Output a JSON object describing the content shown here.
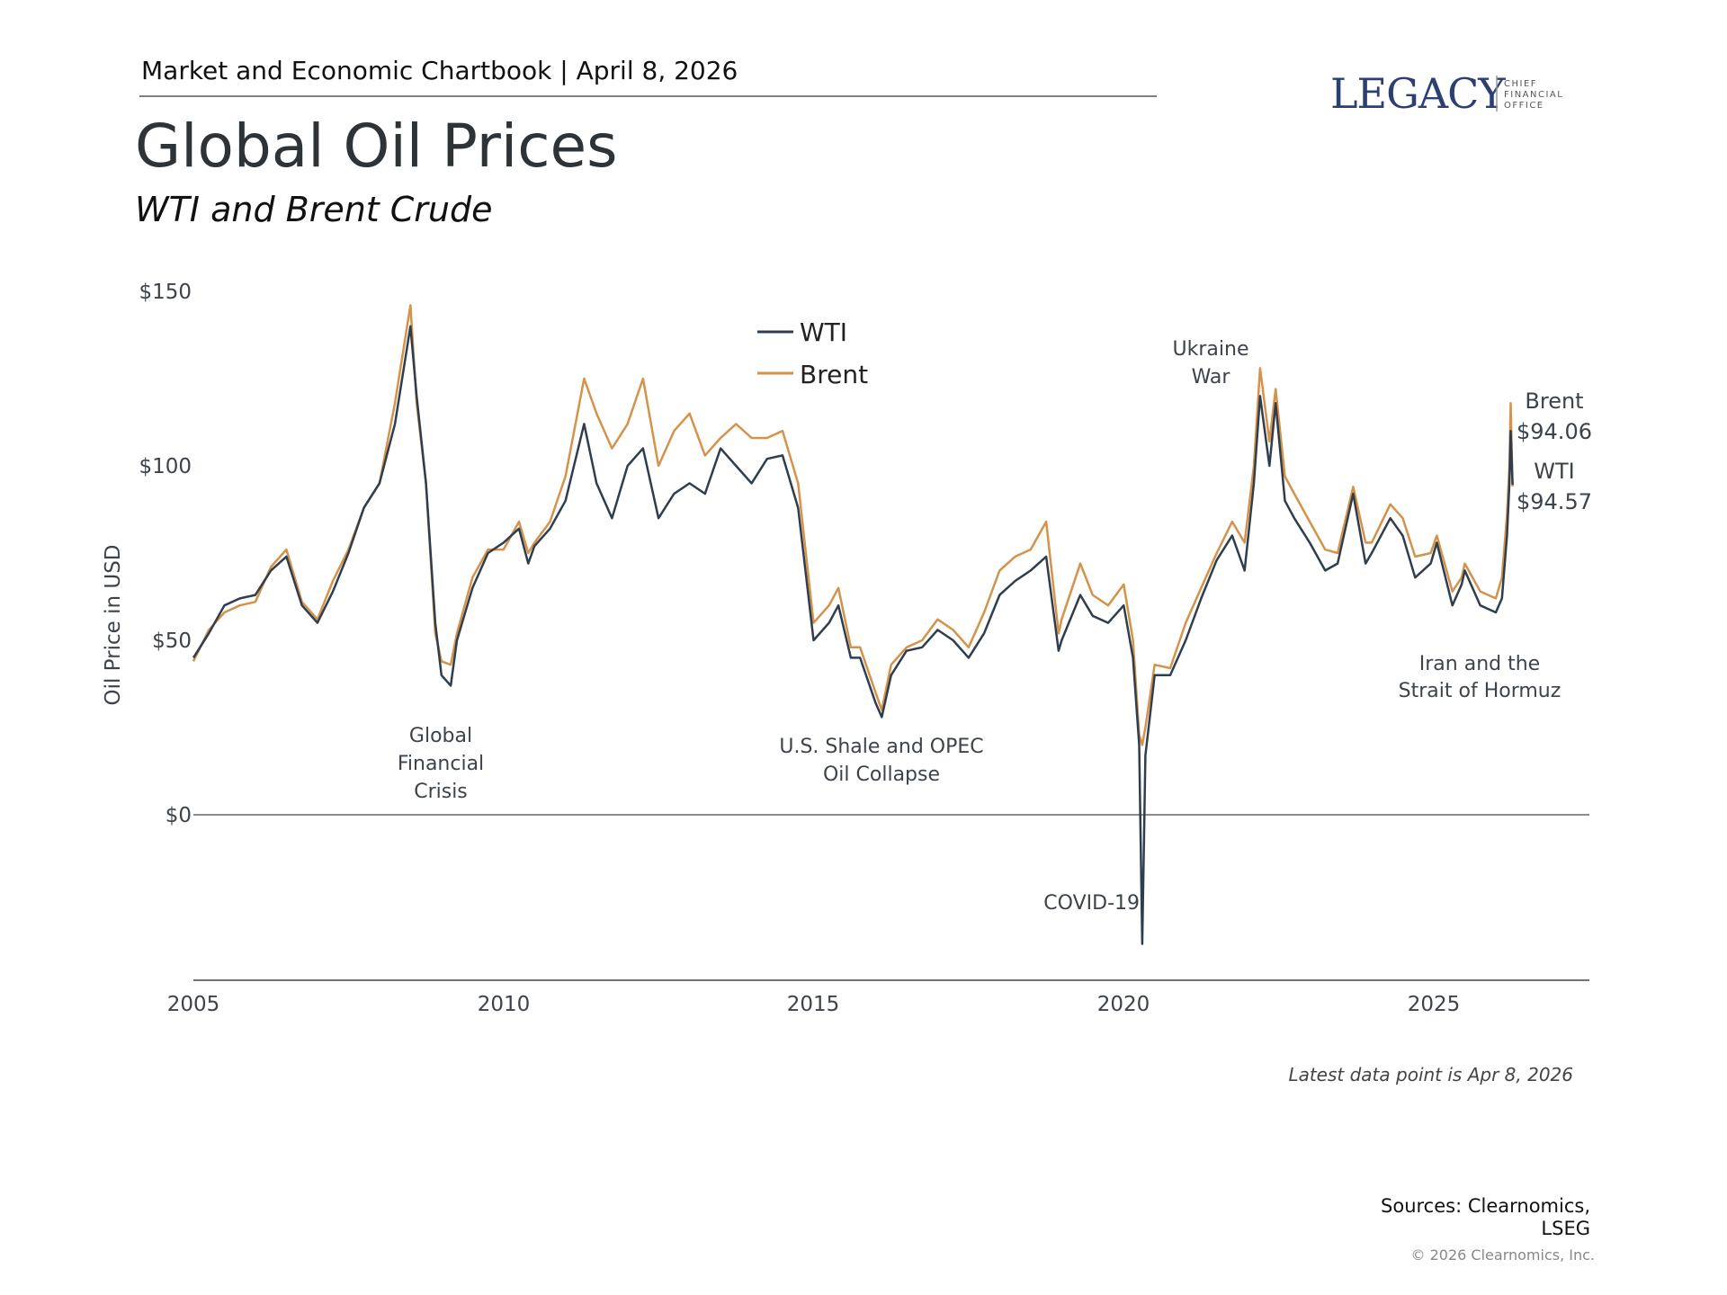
{
  "header": {
    "chartbook": "Market and Economic Chartbook | April 8, 2026"
  },
  "logo": {
    "name": "LEGACY",
    "tagline": [
      "CHIEF",
      "FINANCIAL",
      "OFFICE"
    ],
    "color": "#2b3f72"
  },
  "title": "Global Oil Prices",
  "subtitle": "WTI and Brent Crude",
  "chart_data": {
    "type": "line",
    "ylabel": "Oil Price in USD",
    "xlabel": "",
    "ylim": [
      -37,
      150
    ],
    "xlim": [
      2005,
      2027.5
    ],
    "y_ticks": [
      {
        "v": 150,
        "label": "$150"
      },
      {
        "v": 100,
        "label": "$100"
      },
      {
        "v": 50,
        "label": "$50"
      },
      {
        "v": 0,
        "label": "$0"
      }
    ],
    "x_ticks": [
      {
        "v": 2005,
        "label": "2005"
      },
      {
        "v": 2010,
        "label": "2010"
      },
      {
        "v": 2015,
        "label": "2015"
      },
      {
        "v": 2020,
        "label": "2020"
      },
      {
        "v": 2025,
        "label": "2025"
      }
    ],
    "legend": {
      "placement": "top-center"
    },
    "x": [
      2005.0,
      2005.25,
      2005.5,
      2005.75,
      2006.0,
      2006.25,
      2006.5,
      2006.75,
      2007.0,
      2007.25,
      2007.5,
      2007.75,
      2008.0,
      2008.25,
      2008.5,
      2008.6,
      2008.75,
      2008.9,
      2009.0,
      2009.15,
      2009.25,
      2009.5,
      2009.75,
      2010.0,
      2010.25,
      2010.4,
      2010.5,
      2010.75,
      2011.0,
      2011.3,
      2011.5,
      2011.75,
      2012.0,
      2012.25,
      2012.5,
      2012.75,
      2013.0,
      2013.25,
      2013.5,
      2013.75,
      2014.0,
      2014.25,
      2014.5,
      2014.75,
      2015.0,
      2015.25,
      2015.4,
      2015.6,
      2015.75,
      2016.0,
      2016.1,
      2016.25,
      2016.5,
      2016.75,
      2017.0,
      2017.25,
      2017.5,
      2017.75,
      2018.0,
      2018.25,
      2018.5,
      2018.75,
      2018.95,
      2019.0,
      2019.3,
      2019.5,
      2019.75,
      2020.0,
      2020.15,
      2020.25,
      2020.3,
      2020.35,
      2020.5,
      2020.75,
      2021.0,
      2021.25,
      2021.5,
      2021.75,
      2021.95,
      2022.1,
      2022.2,
      2022.35,
      2022.45,
      2022.6,
      2022.75,
      2023.0,
      2023.25,
      2023.45,
      2023.7,
      2023.9,
      2024.0,
      2024.3,
      2024.5,
      2024.7,
      2024.95,
      2025.05,
      2025.3,
      2025.45,
      2025.5,
      2025.75,
      2026.0,
      2026.1,
      2026.18,
      2026.22,
      2026.24,
      2026.27
    ],
    "series": [
      {
        "name": "WTI",
        "color": "#2f3e4e",
        "values": [
          45,
          52,
          60,
          62,
          63,
          70,
          74,
          60,
          55,
          64,
          75,
          88,
          95,
          112,
          140,
          120,
          95,
          55,
          40,
          37,
          50,
          65,
          75,
          78,
          82,
          72,
          77,
          82,
          90,
          112,
          95,
          85,
          100,
          105,
          85,
          92,
          95,
          92,
          105,
          100,
          95,
          102,
          103,
          88,
          50,
          55,
          60,
          45,
          45,
          32,
          28,
          40,
          47,
          48,
          53,
          50,
          45,
          52,
          63,
          67,
          70,
          74,
          47,
          50,
          63,
          57,
          55,
          60,
          45,
          20,
          -37,
          17,
          40,
          40,
          50,
          62,
          73,
          80,
          70,
          95,
          120,
          100,
          118,
          90,
          85,
          78,
          70,
          72,
          92,
          72,
          75,
          85,
          80,
          68,
          72,
          78,
          60,
          66,
          70,
          60,
          58,
          62,
          80,
          95,
          110,
          94.57
        ]
      },
      {
        "name": "Brent",
        "color": "#d4924a",
        "values": [
          44,
          53,
          58,
          60,
          61,
          71,
          76,
          61,
          56,
          67,
          76,
          88,
          95,
          118,
          146,
          118,
          95,
          52,
          44,
          43,
          52,
          68,
          76,
          76,
          84,
          75,
          78,
          84,
          97,
          125,
          115,
          105,
          112,
          125,
          100,
          110,
          115,
          103,
          108,
          112,
          108,
          108,
          110,
          95,
          55,
          60,
          65,
          48,
          48,
          35,
          30,
          43,
          48,
          50,
          56,
          53,
          48,
          58,
          70,
          74,
          76,
          84,
          52,
          56,
          72,
          63,
          60,
          66,
          50,
          23,
          20,
          25,
          43,
          42,
          55,
          65,
          75,
          84,
          78,
          100,
          128,
          107,
          122,
          97,
          92,
          84,
          76,
          75,
          94,
          78,
          78,
          89,
          85,
          74,
          75,
          80,
          64,
          68,
          72,
          64,
          62,
          68,
          86,
          100,
          118,
          94.06
        ]
      }
    ],
    "annotations": {
      "gfc": [
        "Global",
        "Financial",
        "Crisis"
      ],
      "shale": [
        "U.S. Shale and OPEC",
        "Oil Collapse"
      ],
      "covid": "COVID-19",
      "ukraine": [
        "Ukraine",
        "War"
      ],
      "iran": [
        "Iran and the",
        "Strait of Hormuz"
      ],
      "end_labels": {
        "brent_name": "Brent",
        "brent_value": "$94.06",
        "wti_name": "WTI",
        "wti_value": "$94.57"
      }
    }
  },
  "note": "Latest data point is Apr 8, 2026",
  "sources": [
    "Sources: Clearnomics,",
    "LSEG"
  ],
  "copyright": "© 2026 Clearnomics, Inc."
}
